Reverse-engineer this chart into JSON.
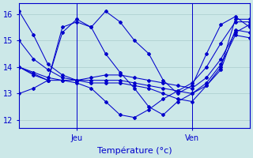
{
  "xlabel": "Température (°c)",
  "background_color": "#cce8e8",
  "line_color": "#0000cc",
  "grid_color": "#aacccc",
  "xlim": [
    0,
    48
  ],
  "ylim": [
    11.7,
    16.4
  ],
  "yticks": [
    12,
    13,
    14,
    15,
    16
  ],
  "xtick_positions": [
    12,
    36
  ],
  "xtick_labels": [
    "Jeu",
    "Ven"
  ],
  "series": [
    {
      "x": [
        0,
        3,
        6,
        9,
        12,
        15,
        18,
        21,
        24,
        27,
        30,
        33,
        36,
        39,
        42,
        45,
        48
      ],
      "y": [
        16.1,
        15.2,
        14.1,
        13.7,
        13.5,
        13.4,
        13.4,
        13.4,
        13.3,
        13.2,
        13.0,
        12.8,
        12.7,
        13.3,
        13.9,
        15.4,
        15.3
      ]
    },
    {
      "x": [
        0,
        3,
        6,
        9,
        12,
        15,
        18,
        21,
        24,
        27,
        30,
        33,
        36,
        39,
        42,
        45,
        48
      ],
      "y": [
        15.0,
        14.3,
        13.9,
        13.6,
        13.5,
        13.5,
        13.5,
        13.5,
        13.4,
        13.3,
        13.2,
        13.1,
        13.0,
        13.4,
        14.1,
        15.2,
        15.1
      ]
    },
    {
      "x": [
        0,
        3,
        6,
        9,
        12,
        15,
        18,
        21,
        24,
        27,
        30,
        33,
        36,
        39,
        42,
        45,
        48
      ],
      "y": [
        14.0,
        13.8,
        13.6,
        13.5,
        13.5,
        13.6,
        13.7,
        13.7,
        13.6,
        13.5,
        13.4,
        13.3,
        13.2,
        13.6,
        14.3,
        15.3,
        15.6
      ]
    },
    {
      "x": [
        0,
        6,
        9,
        12,
        15,
        18,
        21,
        24,
        27,
        30,
        33,
        36,
        39,
        42,
        45,
        48
      ],
      "y": [
        14.0,
        13.5,
        15.3,
        15.8,
        15.5,
        16.1,
        15.7,
        15.0,
        14.5,
        13.5,
        13.0,
        13.3,
        14.5,
        15.6,
        15.9,
        15.5
      ]
    },
    {
      "x": [
        0,
        3,
        6,
        9,
        12,
        15,
        18,
        21,
        24,
        27,
        30,
        33,
        36,
        39,
        42,
        45,
        48
      ],
      "y": [
        14.0,
        13.7,
        13.5,
        15.5,
        15.7,
        15.5,
        14.5,
        13.8,
        13.2,
        12.5,
        12.2,
        12.7,
        13.0,
        13.3,
        14.0,
        15.8,
        15.8
      ]
    },
    {
      "x": [
        0,
        3,
        6,
        9,
        12,
        15,
        18,
        21,
        24,
        27,
        30,
        33,
        36,
        39,
        42,
        45,
        48
      ],
      "y": [
        13.0,
        13.2,
        13.5,
        13.5,
        13.4,
        13.2,
        12.7,
        12.2,
        12.1,
        12.4,
        12.8,
        13.1,
        13.4,
        14.0,
        14.9,
        15.7,
        15.7
      ]
    }
  ]
}
